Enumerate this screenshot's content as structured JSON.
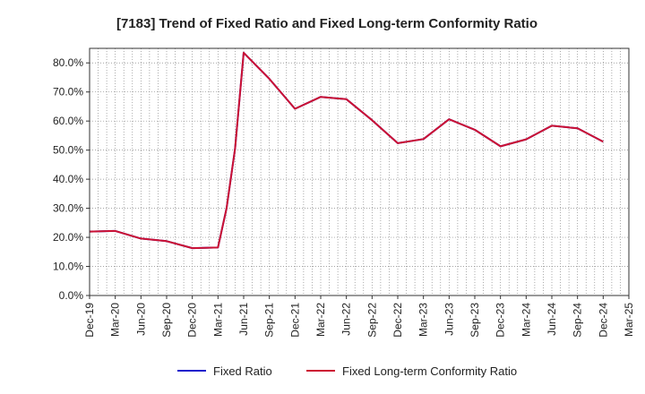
{
  "chart_data": {
    "type": "line",
    "title": "[7183]  Trend of Fixed Ratio and Fixed Long-term Conformity Ratio",
    "xlabel": "",
    "ylabel": "",
    "ylim": [
      0,
      85
    ],
    "y_ticks": [
      "0.0%",
      "10.0%",
      "20.0%",
      "30.0%",
      "40.0%",
      "50.0%",
      "60.0%",
      "70.0%",
      "80.0%"
    ],
    "x_ticks": [
      "Dec-19",
      "Mar-20",
      "Jun-20",
      "Sep-20",
      "Dec-20",
      "Mar-21",
      "Jun-21",
      "Sep-21",
      "Dec-21",
      "Mar-22",
      "Jun-22",
      "Sep-22",
      "Dec-22",
      "Mar-23",
      "Jun-23",
      "Sep-23",
      "Dec-23",
      "Mar-24",
      "Jun-24",
      "Sep-24",
      "Dec-24",
      "Mar-25"
    ],
    "grid": true,
    "legend_position": "bottom",
    "x": [
      "Dec-19",
      "Mar-20",
      "Jun-20",
      "Sep-20",
      "Dec-20",
      "Mar-21",
      "Apr-21",
      "May-21",
      "Jun-21",
      "Sep-21",
      "Dec-21",
      "Mar-22",
      "Jun-22",
      "Sep-22",
      "Dec-22",
      "Mar-23",
      "Jun-23",
      "Sep-23",
      "Dec-23",
      "Mar-24",
      "Jun-24",
      "Sep-24",
      "Dec-24"
    ],
    "series": [
      {
        "name": "Fixed Ratio",
        "color": "#1f1fcc",
        "values": [
          22.0,
          22.2,
          19.6,
          18.7,
          16.3,
          16.5,
          30.0,
          50.5,
          83.5,
          74.5,
          64.2,
          68.3,
          67.5,
          60.3,
          52.4,
          53.8,
          60.6,
          57.0,
          51.3,
          53.7,
          58.4,
          57.5,
          52.9
        ]
      },
      {
        "name": "Fixed Long-term Conformity Ratio",
        "color": "#cc1133",
        "values": [
          22.0,
          22.2,
          19.6,
          18.7,
          16.3,
          16.5,
          30.0,
          50.5,
          83.5,
          74.5,
          64.2,
          68.3,
          67.5,
          60.3,
          52.4,
          53.8,
          60.6,
          57.0,
          51.3,
          53.7,
          58.4,
          57.5,
          52.9
        ]
      }
    ]
  }
}
